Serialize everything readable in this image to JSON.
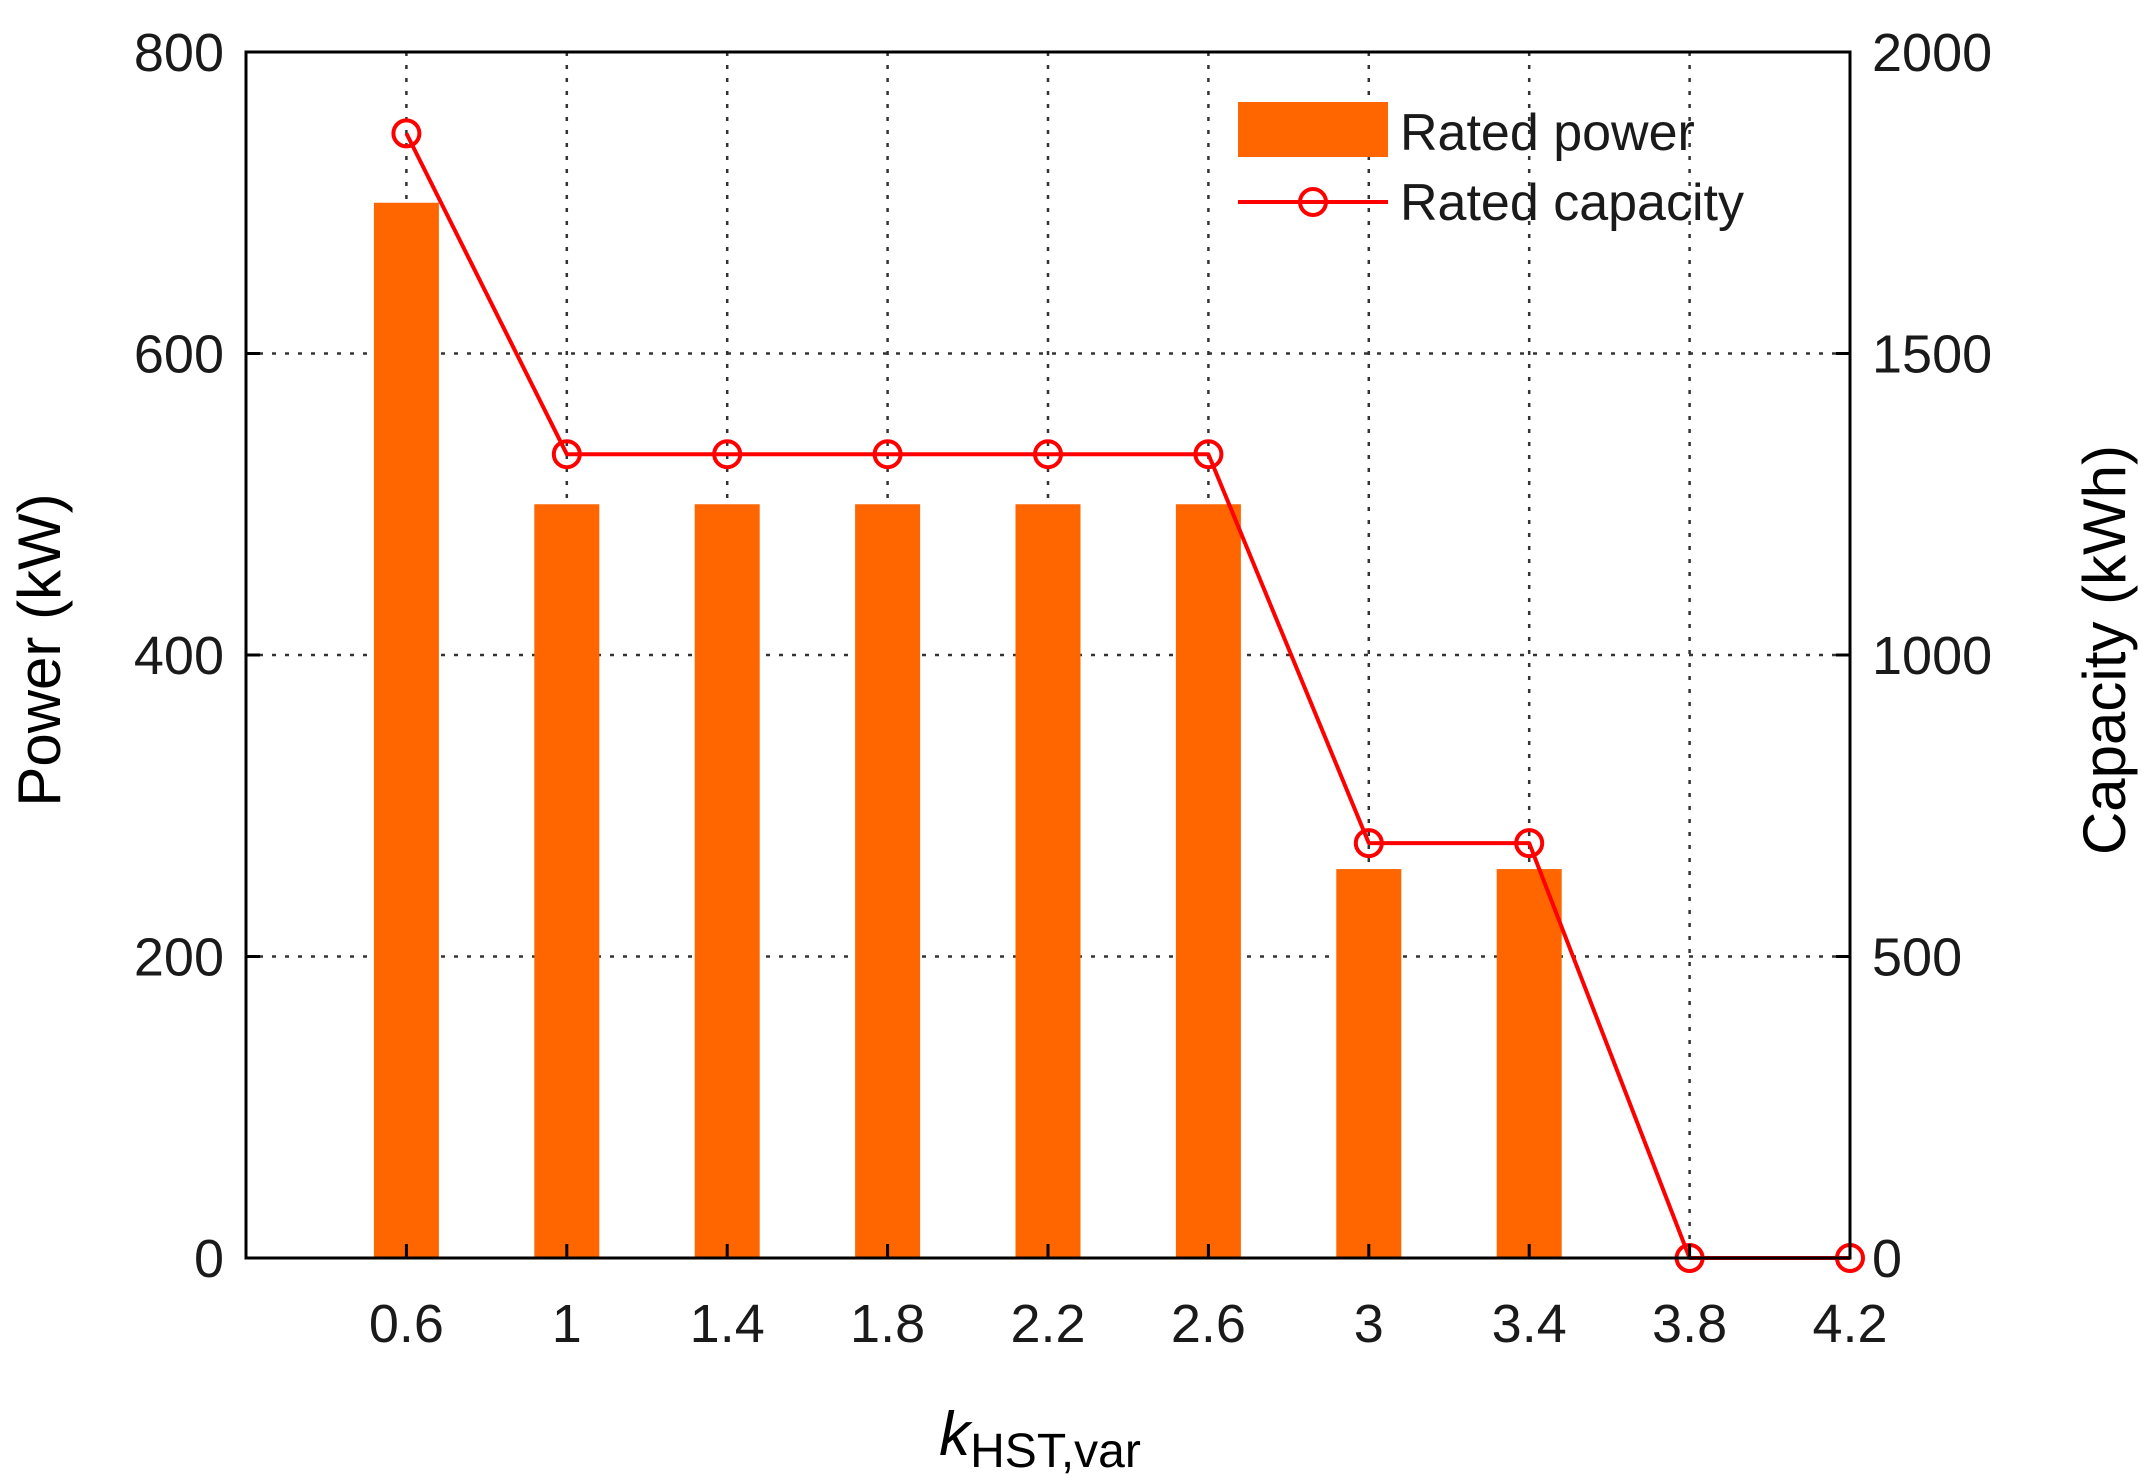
{
  "chart_data": {
    "type": "bar",
    "categories": [
      "0.6",
      "1",
      "1.4",
      "1.8",
      "2.2",
      "2.6",
      "3",
      "3.4",
      "3.8",
      "4.2"
    ],
    "series": [
      {
        "name": "Rated power",
        "kind": "bar",
        "axis": "left",
        "color": "#FF6600",
        "values": [
          700,
          500,
          500,
          500,
          500,
          500,
          258,
          258,
          0,
          0
        ]
      },
      {
        "name": "Rated capacity",
        "kind": "line",
        "marker": "circle",
        "axis": "right",
        "color": "#FF0000",
        "values": [
          1865,
          1333,
          1333,
          1333,
          1333,
          1333,
          688,
          688,
          0,
          0
        ]
      }
    ],
    "xlabel_main": "k",
    "xlabel_sub": "HST,var",
    "ylabel_left": "Power (kW)",
    "ylabel_right": "Capacity (kWh)",
    "ylim_left": [
      0,
      800
    ],
    "ylim_right": [
      0,
      2000
    ],
    "yticks_left": [
      "0",
      "200",
      "400",
      "600",
      "800"
    ],
    "yticks_right": [
      "0",
      "500",
      "1000",
      "1500",
      "2000"
    ],
    "grid": true,
    "legend_position": "top-right"
  }
}
